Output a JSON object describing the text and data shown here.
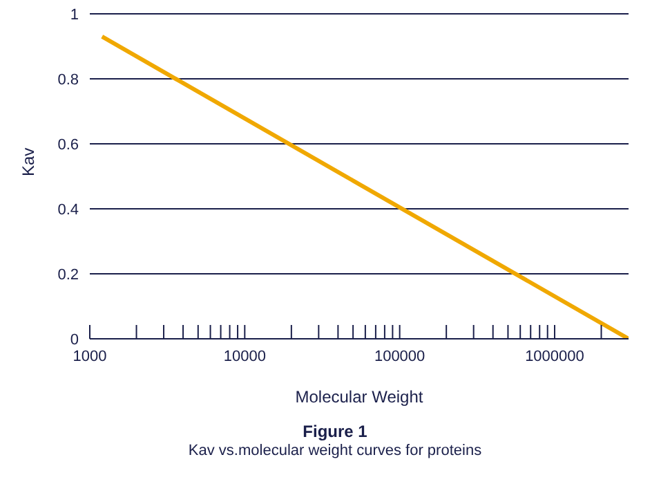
{
  "chart_data": {
    "type": "line",
    "title": "Figure 1",
    "subtitle": "Kav vs.molecular weight curves for proteins",
    "xlabel": "Molecular Weight",
    "ylabel": "Kav",
    "log": "x",
    "series": [
      {
        "color": "#f0a800",
        "x": [
          1200,
          3000000
        ],
        "values": [
          0.93,
          0
        ]
      }
    ],
    "xlim": [
      1000,
      3000000
    ],
    "xticks": [
      1000,
      {
        "value": 2000,
        "label": null
      },
      {
        "value": 3000,
        "label": null
      },
      {
        "value": 4000,
        "label": null
      },
      {
        "value": 5000,
        "label": null
      },
      {
        "value": 6000,
        "label": null
      },
      {
        "value": 7000,
        "label": null
      },
      {
        "value": 8000,
        "label": null
      },
      {
        "value": 9000,
        "label": null
      },
      10000,
      {
        "value": 20000,
        "label": null
      },
      {
        "value": 30000,
        "label": null
      },
      {
        "value": 40000,
        "label": null
      },
      {
        "value": 50000,
        "label": null
      },
      {
        "value": 60000,
        "label": null
      },
      {
        "value": 70000,
        "label": null
      },
      {
        "value": 80000,
        "label": null
      },
      {
        "value": 90000,
        "label": null
      },
      100000,
      {
        "value": 200000,
        "label": null
      },
      {
        "value": 300000,
        "label": null
      },
      {
        "value": 400000,
        "label": null
      },
      {
        "value": 500000,
        "label": null
      },
      {
        "value": 600000,
        "label": null
      },
      {
        "value": 700000,
        "label": null
      },
      {
        "value": 800000,
        "label": null
      },
      {
        "value": 900000,
        "label": null
      },
      1000000,
      {
        "value": 2000000,
        "label": null
      }
    ],
    "ylim": [
      0,
      1
    ],
    "yticks": [
      0,
      0.2,
      0.4,
      0.6,
      0.8,
      1
    ],
    "grid": "y",
    "marker": "none",
    "line_style": "solid"
  }
}
